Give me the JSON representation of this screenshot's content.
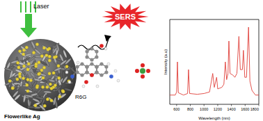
{
  "labels": {
    "laser": "Laser",
    "sers": "SERS",
    "substrate": "Flowerlike Ag",
    "molecule": "R6G"
  },
  "chart_data": {
    "type": "line",
    "x_label": "Wavelength (nm)",
    "y_label": "Intensity (a.u)",
    "x": [
      500,
      580,
      600,
      612,
      625,
      700,
      760,
      774,
      790,
      900,
      1000,
      1080,
      1127,
      1150,
      1184,
      1200,
      1260,
      1290,
      1311,
      1330,
      1350,
      1363,
      1380,
      1420,
      1450,
      1480,
      1509,
      1530,
      1560,
      1575,
      1595,
      1620,
      1650,
      1670,
      1700,
      1750,
      1800
    ],
    "values": [
      12,
      12,
      16,
      55,
      15,
      12,
      14,
      45,
      14,
      13,
      14,
      16,
      40,
      22,
      35,
      20,
      22,
      26,
      55,
      32,
      40,
      82,
      40,
      38,
      35,
      40,
      88,
      45,
      45,
      70,
      35,
      35,
      100,
      30,
      18,
      12,
      12
    ],
    "color": "#e0403a",
    "xlim": [
      500,
      1800
    ],
    "xticks": [
      600,
      800,
      1000,
      1200,
      1400,
      1600,
      1800
    ],
    "ylim": [
      0,
      110
    ],
    "tick_labels": "x"
  }
}
